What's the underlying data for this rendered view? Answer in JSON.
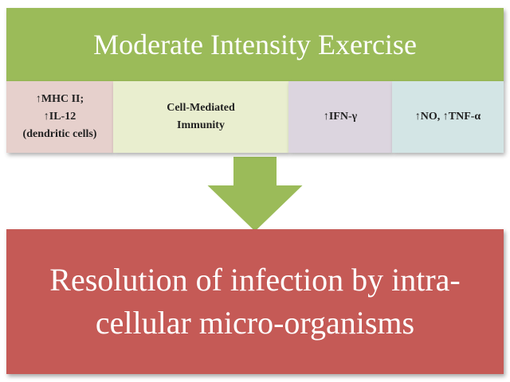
{
  "header": {
    "title": "Moderate Intensity Exercise"
  },
  "cells": [
    {
      "lines": [
        "↑MHC II;",
        "↑IL-12",
        "(dendritic cells)"
      ]
    },
    {
      "lines": [
        "Cell-Mediated",
        "Immunity"
      ]
    },
    {
      "lines": [
        "↑IFN-γ"
      ]
    },
    {
      "lines": [
        "↑NO, ↑TNF-α"
      ]
    }
  ],
  "outcome": {
    "lines": [
      "Resolution of infection by intra-",
      "cellular micro-organisms"
    ]
  }
}
